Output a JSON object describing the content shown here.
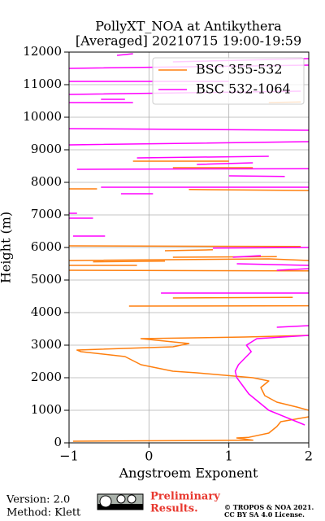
{
  "chart_data": {
    "type": "line",
    "title": [
      "PollyXT_NOA at Antikythera",
      "[Averaged] 20210715 19:00-19:59"
    ],
    "xlabel": "Angstroem Exponent",
    "ylabel": "Height (m)",
    "xlim": [
      -1,
      2
    ],
    "ylim": [
      0,
      12000
    ],
    "xticks": [
      {
        "value": -1,
        "label": "−1"
      },
      0,
      1,
      2
    ],
    "yticks": [
      0,
      1000,
      2000,
      3000,
      4000,
      5000,
      6000,
      7000,
      8000,
      9000,
      10000,
      11000,
      12000
    ],
    "grid": true,
    "legend": "upper right",
    "series": [
      {
        "name": "BSC 355-532",
        "color": "#ff7f0e",
        "values": [
          -0.95,
          1.3,
          1.1,
          1.25,
          1.5,
          1.6,
          1.65,
          2.0,
          null,
          2.0,
          1.85,
          1.6,
          1.45,
          1.4,
          1.5,
          1.3,
          0.6,
          0.3,
          -0.1,
          -0.3,
          -0.85,
          -0.9,
          0.3,
          0.5,
          -0.1,
          1.2,
          2.0,
          null,
          -0.25,
          2.0,
          null,
          0.3,
          1.8,
          null,
          -1,
          2.0,
          null,
          -1,
          -0.15,
          null,
          -0.7,
          0.2,
          null,
          -1,
          1.5,
          2.0,
          null,
          0.3,
          1.6,
          null,
          0.2,
          0.8,
          null,
          -1,
          1.9,
          null,
          -1,
          -0.65,
          null,
          0.5,
          2.0,
          null,
          0.3,
          1.3,
          null,
          -0.2,
          1.0,
          null,
          1.5,
          1.9
        ],
        "heights": [
          50,
          80,
          150,
          170,
          300,
          500,
          650,
          800,
          null,
          1000,
          1100,
          1250,
          1450,
          1700,
          1900,
          2000,
          2150,
          2200,
          2400,
          2650,
          2800,
          2850,
          2950,
          3050,
          3200,
          3250,
          3300,
          null,
          4200,
          4210,
          null,
          4450,
          4470,
          null,
          5300,
          5280,
          null,
          5450,
          5450,
          null,
          5560,
          5580,
          null,
          5600,
          5650,
          5600,
          null,
          5700,
          5720,
          null,
          5900,
          5930,
          null,
          6050,
          6030,
          null,
          7800,
          7800,
          null,
          7780,
          7750,
          null,
          8450,
          8450,
          null,
          8650,
          8650,
          null,
          10450,
          10470
        ]
      },
      {
        "name": "BSC 532-1064",
        "color": "#ff00ff",
        "values": [
          1.95,
          1.5,
          1.25,
          1.1,
          1.08,
          1.12,
          1.2,
          1.28,
          1.22,
          1.35,
          2.0,
          null,
          1.6,
          2.0,
          null,
          0.15,
          2.0,
          null,
          1.6,
          2.0,
          null,
          1.1,
          2.0,
          null,
          1.05,
          1.4,
          null,
          0.8,
          2.0,
          null,
          -0.95,
          -0.55,
          null,
          -1,
          -0.7,
          null,
          -1,
          -0.9,
          null,
          -0.35,
          0.05,
          null,
          -0.6,
          2.0,
          null,
          1.0,
          1.7,
          null,
          -0.9,
          2.0,
          null,
          0.6,
          1.3,
          null,
          -0.15,
          1.5,
          null,
          -1,
          2.0,
          null,
          -1,
          2.0,
          null,
          -1,
          -0.2,
          null,
          -0.6,
          -0.3,
          null,
          -1,
          1.9,
          null,
          -1,
          1.0,
          null,
          -1,
          2.0,
          null,
          0.3,
          2.0,
          null,
          -0.4,
          -0.2
        ],
        "heights": [
          550,
          1000,
          1500,
          2000,
          2200,
          2400,
          2600,
          2800,
          3000,
          3200,
          3300,
          null,
          3550,
          3600,
          null,
          4600,
          4600,
          null,
          5300,
          5350,
          null,
          5500,
          5450,
          null,
          5700,
          5750,
          null,
          5980,
          6000,
          null,
          6350,
          6350,
          null,
          6900,
          6900,
          null,
          7050,
          7050,
          null,
          7650,
          7650,
          null,
          7850,
          7850,
          null,
          8200,
          8180,
          null,
          8400,
          8420,
          null,
          8550,
          8600,
          null,
          8750,
          8800,
          null,
          9150,
          9250,
          null,
          9650,
          9600,
          null,
          10450,
          10450,
          null,
          10550,
          10550,
          null,
          10700,
          10800,
          null,
          11100,
          11100,
          null,
          11500,
          11600,
          null,
          11700,
          11800,
          null,
          11900,
          11950
        ]
      }
    ]
  },
  "footer": {
    "version": "Version: 2.0",
    "method": "Method: Klett",
    "preliminary": [
      "Preliminary",
      "Results."
    ],
    "license": [
      "© TROPOS & NOA 2021.",
      "CC BY SA 4.0 License."
    ]
  }
}
